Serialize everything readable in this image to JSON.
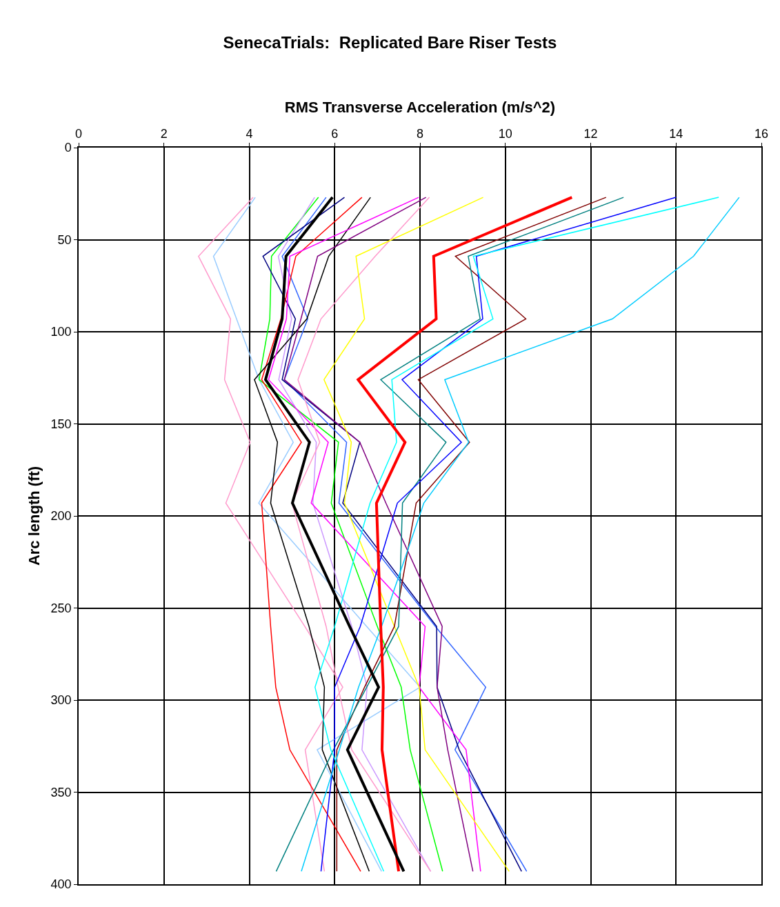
{
  "chart_data": {
    "type": "line",
    "title": "SenecaTrials:  Replicated Bare Riser Tests",
    "xlabel": "RMS Transverse Acceleration (m/s^2)",
    "ylabel": "Arc length (ft)",
    "orientation": "horizontal",
    "x": [
      27,
      59,
      93,
      126,
      160,
      193,
      260,
      293,
      327,
      393
    ],
    "series": [
      {
        "color": "#ff99cc",
        "values": [
          4.09,
          2.81,
          3.56,
          3.42,
          4.02,
          3.45,
          5.3,
          6.19,
          5.31,
          5.76
        ]
      },
      {
        "color": "#99ccff",
        "values": [
          4.14,
          3.16,
          3.7,
          4.23,
          5.03,
          4.22,
          6.75,
          8.0,
          5.59,
          7.1
        ]
      },
      {
        "color": "#00ff00",
        "values": [
          5.62,
          4.52,
          4.48,
          4.23,
          6.09,
          5.92,
          7.0,
          7.56,
          7.77,
          8.53
        ]
      },
      {
        "color": "#cc99ff",
        "values": [
          5.53,
          4.68,
          4.99,
          4.69,
          5.57,
          5.49,
          6.4,
          6.76,
          6.64,
          8.25
        ]
      },
      {
        "color": "#3366ff",
        "values": [
          5.8,
          4.77,
          5.37,
          4.82,
          6.28,
          6.1,
          8.36,
          9.54,
          8.82,
          10.5
        ]
      },
      {
        "color": "#000080",
        "values": [
          6.23,
          4.32,
          5.08,
          4.77,
          6.59,
          6.19,
          8.39,
          8.4,
          8.92,
          10.38
        ]
      },
      {
        "color": "#ff0000",
        "values": [
          6.64,
          5.09,
          4.74,
          4.29,
          5.22,
          4.29,
          4.5,
          4.62,
          4.95,
          6.61
        ]
      },
      {
        "color": "#000000",
        "values": [
          6.84,
          5.86,
          5.35,
          4.12,
          4.66,
          4.5,
          5.4,
          5.76,
          5.71,
          6.81
        ]
      },
      {
        "color": "#ff00ff",
        "values": [
          7.97,
          4.95,
          4.87,
          4.45,
          5.85,
          5.45,
          8.12,
          7.98,
          9.08,
          9.42
        ]
      },
      {
        "color": "#800080",
        "values": [
          8.14,
          5.6,
          5.21,
          4.82,
          6.59,
          7.2,
          8.52,
          8.4,
          8.65,
          9.24
        ]
      },
      {
        "color": "#ff99cc",
        "values": [
          8.22,
          6.95,
          5.68,
          5.14,
          5.65,
          5.0,
          5.8,
          6.08,
          6.4,
          8.25
        ]
      },
      {
        "color": "#ffff00",
        "values": [
          9.48,
          6.5,
          6.7,
          5.75,
          6.39,
          6.23,
          7.4,
          7.98,
          8.12,
          10.09
        ]
      },
      {
        "color": "#800000",
        "values": [
          12.36,
          8.83,
          10.48,
          7.96,
          9.16,
          7.91,
          7.4,
          6.7,
          6.05,
          6.05
        ]
      },
      {
        "color": "#008080",
        "values": [
          12.77,
          9.13,
          9.41,
          7.08,
          8.61,
          7.59,
          7.5,
          6.75,
          5.97,
          4.63
        ]
      },
      {
        "color": "#0000ff",
        "values": [
          14.0,
          9.32,
          9.47,
          7.58,
          8.97,
          7.47,
          6.6,
          6.0,
          6.0,
          5.68
        ]
      },
      {
        "color": "#00ffff",
        "values": [
          15.0,
          9.25,
          9.71,
          7.34,
          7.45,
          6.83,
          6.0,
          5.54,
          5.91,
          7.15
        ]
      },
      {
        "color": "#00ccff",
        "values": [
          15.48,
          14.41,
          12.51,
          8.58,
          9.14,
          8.09,
          7.1,
          6.56,
          6.11,
          5.22
        ]
      },
      {
        "color": "#ff0000",
        "values": [
          11.56,
          8.32,
          8.38,
          6.55,
          7.65,
          6.98,
          7.08,
          7.14,
          7.11,
          7.5
        ]
      },
      {
        "color": "#000000",
        "values": [
          5.95,
          4.86,
          4.77,
          4.38,
          5.41,
          5.01,
          6.35,
          7.03,
          6.3,
          7.62
        ]
      }
    ],
    "xlim": [
      0,
      16
    ],
    "xticks": [
      0,
      2,
      4,
      6,
      8,
      10,
      12,
      14,
      16
    ],
    "ylim": [
      400,
      0
    ],
    "yticks": [
      0,
      50,
      100,
      150,
      200,
      250,
      300,
      350,
      400
    ],
    "grid": true,
    "marker": "none",
    "line_style": "solid"
  }
}
